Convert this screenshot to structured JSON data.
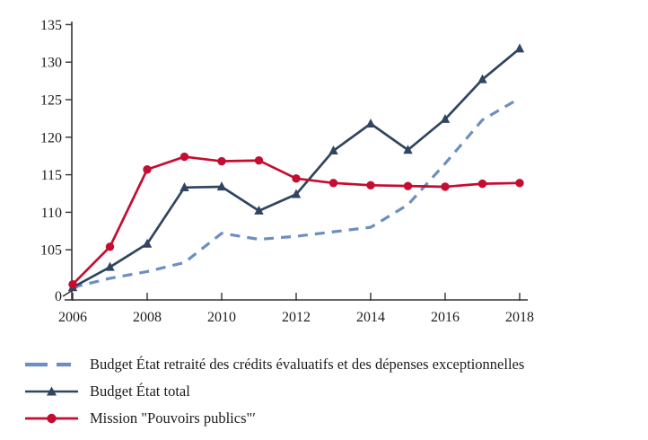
{
  "chart_data": {
    "type": "line",
    "x": [
      2006,
      2007,
      2008,
      2009,
      2010,
      2011,
      2012,
      2013,
      2014,
      2015,
      2016,
      2017,
      2018
    ],
    "x_tick_labels": [
      "2006",
      "2008",
      "2010",
      "2012",
      "2014",
      "2016",
      "2018"
    ],
    "y_axis": {
      "ticks": [
        135,
        130,
        125,
        120,
        115,
        110,
        105
      ],
      "zero_label": "0"
    },
    "ylim": [
      100,
      135
    ],
    "axis_break_above_zero": true,
    "grid": false,
    "legend_position": "bottom-left",
    "series": [
      {
        "key": "budget-etat-retraite",
        "name": "Budget État retraité des crédits évaluatifs et des dépenses exceptionnelles",
        "color": "#6C8FC1",
        "style": "dashed",
        "marker": "none",
        "values": [
          100,
          101.2,
          102.1,
          103.3,
          107.2,
          106.4,
          106.8,
          107.4,
          108,
          111,
          116.5,
          122.3,
          125.2
        ]
      },
      {
        "key": "budget-etat-total",
        "name": "Budget État total",
        "color": "#2F4560",
        "style": "solid",
        "marker": "triangle",
        "values": [
          100,
          102.7,
          105.8,
          113.3,
          113.4,
          110.2,
          112.4,
          118.2,
          121.8,
          118.3,
          122.4,
          127.7,
          131.8
        ]
      },
      {
        "key": "mission-pouvoirs-publics",
        "name": "Mission \"Pouvoirs publics\"′",
        "color": "#C40D31",
        "style": "solid",
        "marker": "circle",
        "values": [
          100.4,
          105.4,
          115.7,
          117.4,
          116.8,
          116.9,
          114.5,
          113.9,
          113.6,
          113.5,
          113.4,
          113.8,
          113.9
        ]
      }
    ],
    "axis_color": "#333333"
  }
}
